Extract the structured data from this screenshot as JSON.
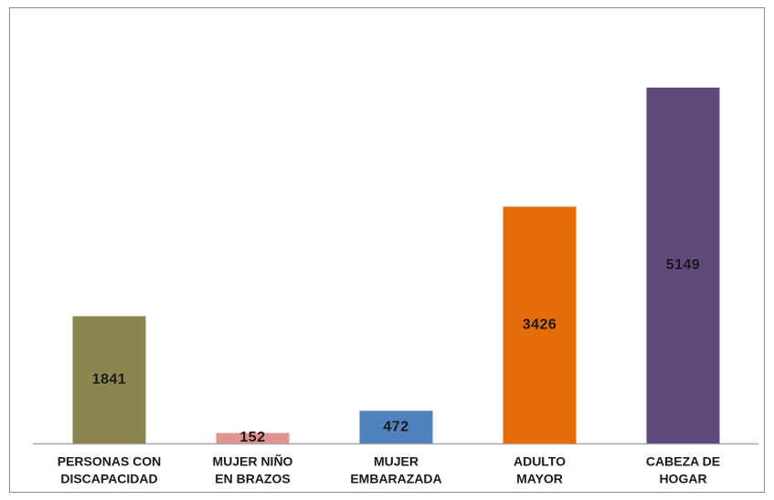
{
  "chart_data": {
    "type": "bar",
    "categories": [
      [
        "PERSONAS CON",
        "DISCAPACIDAD"
      ],
      [
        "MUJER NIÑO",
        "EN BRAZOS"
      ],
      [
        "MUJER",
        "EMBARAZADA"
      ],
      [
        "ADULTO",
        "MAYOR"
      ],
      [
        "CABEZA DE",
        "HOGAR"
      ]
    ],
    "values": [
      1841,
      152,
      472,
      3426,
      5149
    ],
    "colors": [
      "#8d8550",
      "#e0938f",
      "#4f81bd",
      "#e46c0a",
      "#604a7b"
    ]
  }
}
